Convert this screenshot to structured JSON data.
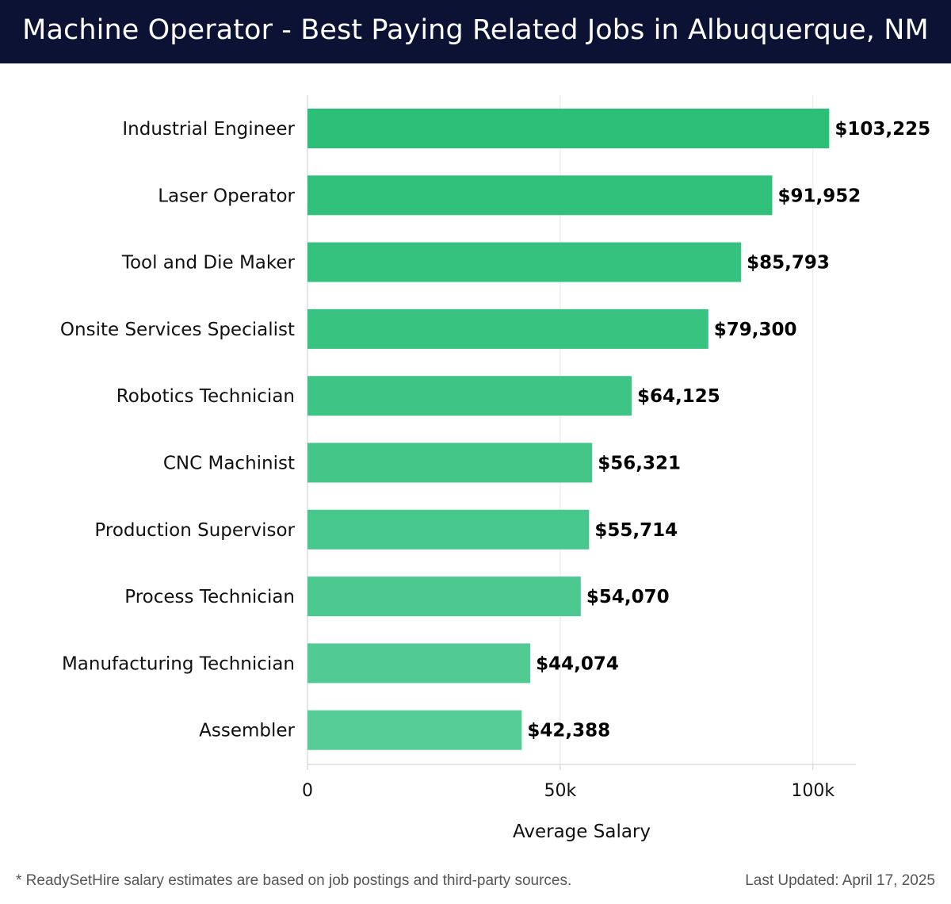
{
  "header": {
    "title": "Machine Operator - Best Paying Related Jobs in Albuquerque, NM"
  },
  "chart_data": {
    "type": "bar",
    "orientation": "horizontal",
    "categories": [
      "Industrial Engineer",
      "Laser Operator",
      "Tool and Die Maker",
      "Onsite Services Specialist",
      "Robotics Technician",
      "CNC Machinist",
      "Production Supervisor",
      "Process Technician",
      "Manufacturing Technician",
      "Assembler"
    ],
    "values": [
      103225,
      91952,
      85793,
      79300,
      64125,
      56321,
      55714,
      54070,
      44074,
      42388
    ],
    "value_labels": [
      "$103,225",
      "$91,952",
      "$85,793",
      "$79,300",
      "$64,125",
      "$56,321",
      "$55,714",
      "$54,070",
      "$44,074",
      "$42,388"
    ],
    "xlabel": "Average Salary",
    "ylabel": "",
    "xlim": [
      0,
      108500
    ],
    "x_ticks": [
      0,
      50000,
      100000
    ],
    "x_tick_labels": [
      "0",
      "50k",
      "100k"
    ],
    "grid": "vertical",
    "colors": {
      "bar_start": "#2bbf77",
      "bar_end": "#56cc96",
      "grid": "#e6e6e6",
      "axis": "#cccccc",
      "text": "#111111"
    }
  },
  "footer": {
    "note": "* ReadySetHire salary estimates are based on job postings and third-party sources.",
    "updated": "Last Updated: April 17, 2025"
  }
}
